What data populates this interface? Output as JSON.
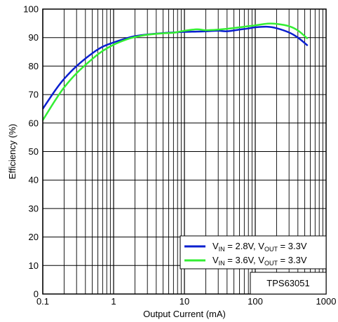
{
  "chart_data": {
    "type": "line",
    "xlabel": "Output Current (mA)",
    "ylabel": "Efficiency (%)",
    "x_scale": "log",
    "xlim": [
      0.1,
      1000
    ],
    "ylim": [
      0,
      100
    ],
    "x_ticks": [
      0.1,
      1,
      10,
      100,
      1000
    ],
    "x_tick_labels": [
      "0.1",
      "1",
      "10",
      "100",
      "1000"
    ],
    "y_ticks": [
      0,
      10,
      20,
      30,
      40,
      50,
      60,
      70,
      80,
      90,
      100
    ],
    "y_tick_labels": [
      "0",
      "10",
      "20",
      "30",
      "40",
      "50",
      "60",
      "70",
      "80",
      "90",
      "100"
    ],
    "grid": true,
    "legend_position": "bottom-right",
    "annotation": "TPS63051",
    "series": [
      {
        "legend": {
          "v_main": "V",
          "vin_sub": "IN",
          "vin_value": " = 2.8V, ",
          "vout_main": "V",
          "vout_sub": "OUT",
          "vout_value": " = 3.3V"
        },
        "color": "#0a1fcf",
        "x": [
          0.1,
          0.15,
          0.2,
          0.3,
          0.5,
          0.7,
          1,
          1.5,
          2,
          3,
          5,
          7,
          10,
          15,
          20,
          30,
          40,
          60,
          80,
          100,
          150,
          200,
          300,
          400,
          550
        ],
        "y": [
          65,
          71.5,
          75.5,
          80,
          84.5,
          86.8,
          88.3,
          89.7,
          90.5,
          91.1,
          91.6,
          91.8,
          92,
          92.1,
          92.2,
          92.4,
          92.2,
          92.8,
          93.2,
          93.6,
          93.8,
          93.3,
          91.8,
          90,
          87.2
        ]
      },
      {
        "legend": {
          "v_main": "V",
          "vin_sub": "IN",
          "vin_value": " = 3.6V, ",
          "vout_main": "V",
          "vout_sub": "OUT",
          "vout_value": " = 3.3V"
        },
        "color": "#33ee33",
        "x": [
          0.1,
          0.15,
          0.2,
          0.3,
          0.5,
          0.7,
          1,
          1.5,
          2,
          3,
          5,
          7,
          10,
          15,
          20,
          30,
          40,
          60,
          80,
          100,
          150,
          200,
          300,
          400,
          550
        ],
        "y": [
          61,
          68,
          72.5,
          77.5,
          82.5,
          85.3,
          87.5,
          89.3,
          90.2,
          91,
          91.5,
          91.7,
          92.4,
          92.9,
          92.6,
          92.8,
          93.1,
          93.6,
          94,
          94.3,
          94.9,
          94.8,
          94,
          92.5,
          89.6
        ]
      }
    ]
  }
}
